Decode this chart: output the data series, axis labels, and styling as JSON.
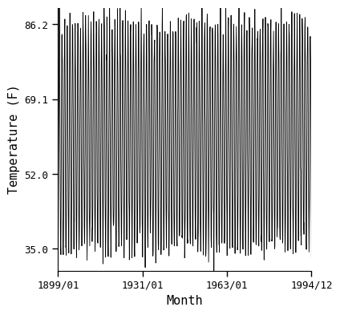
{
  "title": "",
  "xlabel": "Month",
  "ylabel": "Temperature (F)",
  "start_year": 1899,
  "start_month": 1,
  "end_year": 1994,
  "end_month": 12,
  "ylim": [
    30.0,
    90.0
  ],
  "yticks": [
    35.0,
    52.0,
    69.1,
    86.2
  ],
  "xtick_labels": [
    "1899/01",
    "1931/01",
    "1963/01",
    "1994/12"
  ],
  "xtick_years": [
    1899,
    1931,
    1963,
    1994
  ],
  "xtick_months": [
    1,
    1,
    1,
    12
  ],
  "mean_temp": 60.6,
  "amplitude": 25.6,
  "noise_std": 2.5,
  "line_color": "#000000",
  "line_width": 0.6,
  "bg_color": "#ffffff"
}
